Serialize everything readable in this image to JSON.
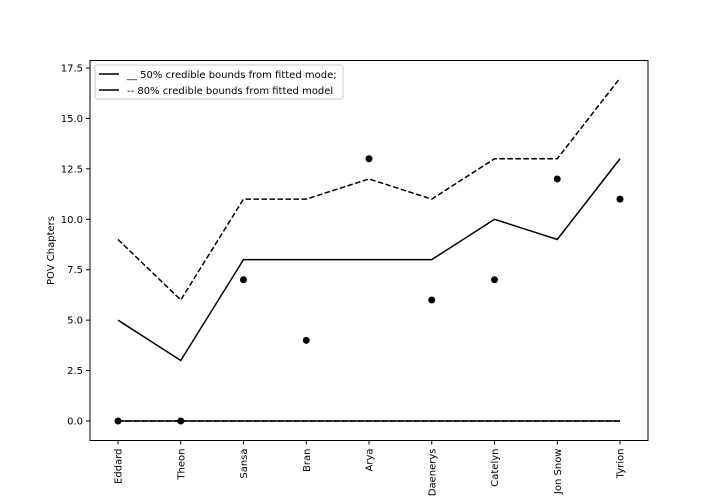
{
  "chart_data": {
    "type": "line",
    "title": "",
    "xlabel": "",
    "ylabel": "POV Chapters",
    "categories": [
      "Eddard",
      "Theon",
      "Sansa",
      "Bran",
      "Arya",
      "Daenerys",
      "Catelyn",
      "Jon Snow",
      "Tyrion"
    ],
    "ylim": [
      -1,
      17.8
    ],
    "yticks": [
      0.0,
      2.5,
      5.0,
      7.5,
      10.0,
      12.5,
      15.0,
      17.5
    ],
    "ytick_labels": [
      "0.0",
      "2.5",
      "5.0",
      "7.5",
      "10.0",
      "12.5",
      "15.0",
      "17.5"
    ],
    "grid": false,
    "legend_position": "top-left",
    "series": [
      {
        "name": "__ 50% credible bounds from fitted mode;",
        "style": "solid",
        "color": "#000000",
        "values": [
          5,
          3,
          8,
          8,
          8,
          8,
          10,
          9,
          13
        ]
      },
      {
        "name": "-- 80% credible bounds from fitted model",
        "style": "dashed",
        "color": "#000000",
        "values": [
          9,
          6,
          11,
          11,
          12,
          11,
          13,
          13,
          17
        ]
      },
      {
        "style": "solid",
        "color": "#000000",
        "values": [
          0,
          0,
          0,
          0,
          0,
          0,
          0,
          0,
          0
        ]
      },
      {
        "style": "dashed",
        "color": "#000000",
        "values": [
          0,
          0,
          0,
          0,
          0,
          0,
          0,
          0,
          0
        ]
      }
    ],
    "points": {
      "color": "#000000",
      "values": [
        0,
        0,
        7,
        4,
        13,
        6,
        7,
        12,
        11
      ]
    }
  }
}
